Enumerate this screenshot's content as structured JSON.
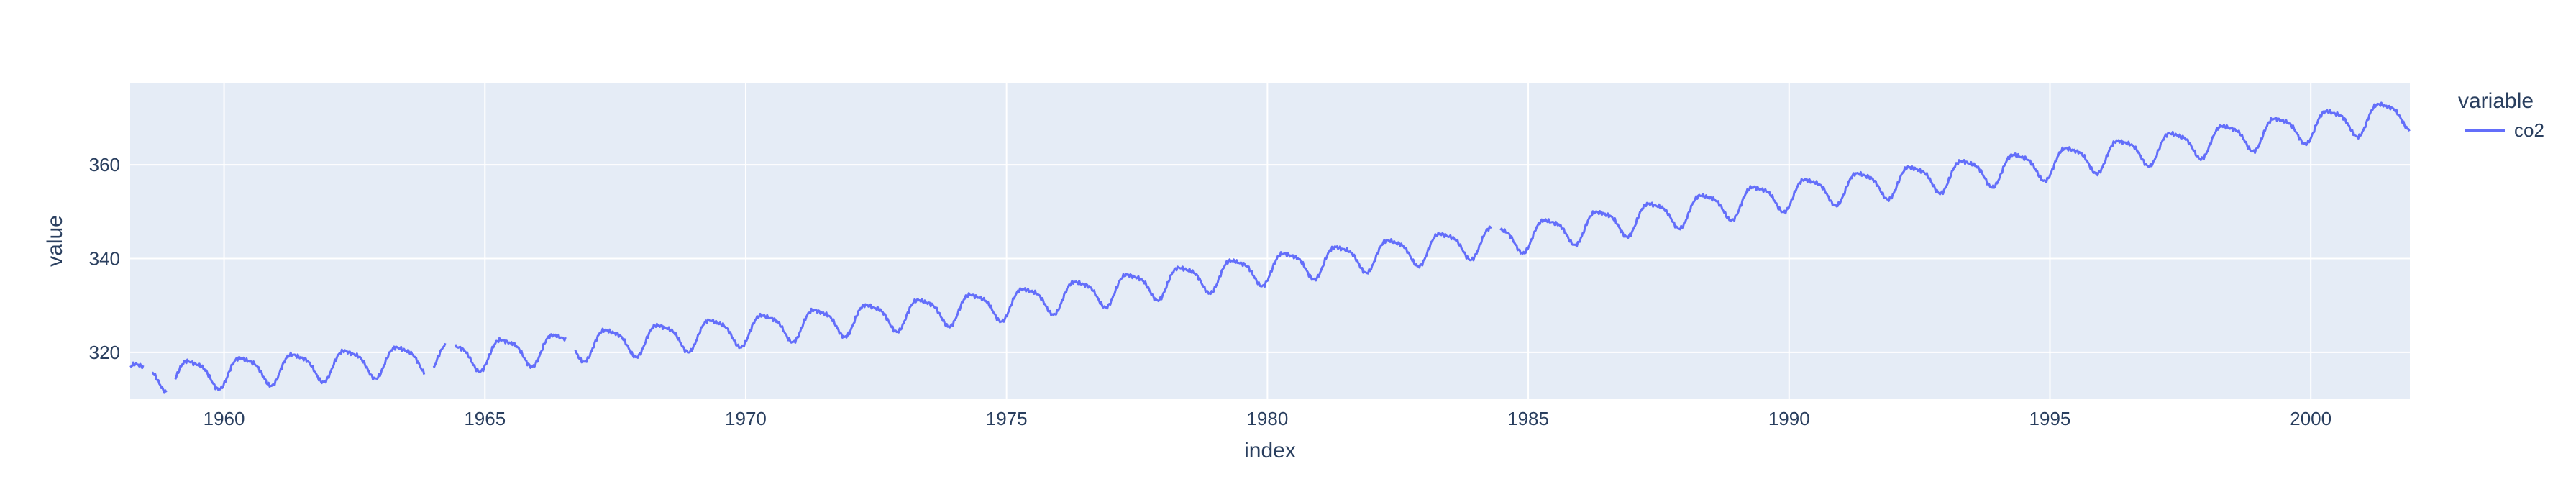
{
  "chart_data": {
    "type": "line",
    "title": "",
    "xlabel": "index",
    "ylabel": "value",
    "xlim": [
      1958.2,
      2001.9
    ],
    "ylim": [
      310,
      377.5
    ],
    "xticks": [
      1960,
      1965,
      1970,
      1975,
      1980,
      1985,
      1990,
      1995,
      2000
    ],
    "yticks": [
      320,
      340,
      360
    ],
    "grid": true,
    "legend": {
      "title": "variable",
      "placement": "right"
    },
    "series": [
      {
        "name": "co2",
        "color": "#636efa",
        "trend_anchors": [
          [
            1958.2,
            314.8
          ],
          [
            1960,
            315.9
          ],
          [
            1965,
            319.7
          ],
          [
            1970,
            324.9
          ],
          [
            1975,
            330.4
          ],
          [
            1980,
            338.0
          ],
          [
            1985,
            345.0
          ],
          [
            1990,
            353.8
          ],
          [
            1995,
            360.4
          ],
          [
            2000,
            368.3
          ],
          [
            2001.9,
            371.2
          ]
        ],
        "seasonal_amplitude": 3.0,
        "points_per_year": 52,
        "gaps": [
          [
            1958.45,
            1958.62
          ],
          [
            1958.9,
            1959.05
          ],
          [
            1963.85,
            1964.0
          ],
          [
            1964.25,
            1964.42
          ],
          [
            1966.55,
            1966.7
          ],
          [
            1984.3,
            1984.45
          ]
        ]
      }
    ]
  }
}
